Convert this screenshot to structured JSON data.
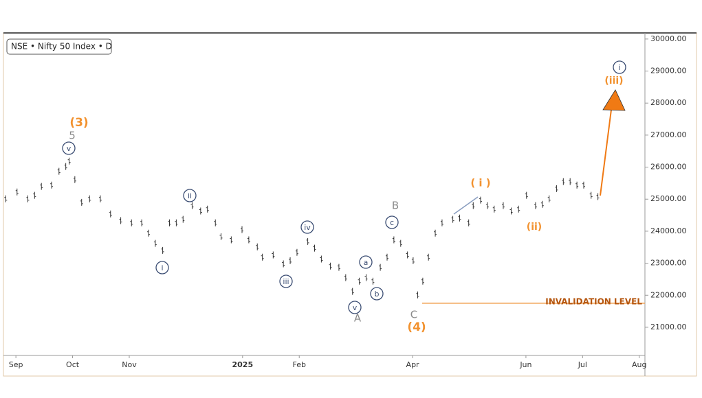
{
  "chart_data": {
    "type": "ohlc",
    "title": "NSE • Nifty 50 Index • D",
    "x": [
      -0.18,
      0.02,
      0.21,
      0.33,
      0.45,
      0.63,
      0.76,
      0.88,
      0.94,
      1.04,
      1.16,
      1.3,
      1.49,
      1.67,
      1.85,
      2.04,
      2.22,
      2.34,
      2.46,
      2.59,
      2.71,
      2.83,
      2.95,
      3.11,
      3.26,
      3.38,
      3.52,
      3.62,
      3.8,
      3.99,
      4.11,
      4.26,
      4.35,
      4.54,
      4.72,
      4.84,
      4.96,
      5.15,
      5.27,
      5.39,
      5.55,
      5.7,
      5.82,
      5.94,
      6.06,
      6.18,
      6.3,
      6.43,
      6.55,
      6.67,
      6.79,
      6.91,
      7.01,
      7.09,
      7.18,
      7.28,
      7.4,
      7.52,
      7.71,
      7.83,
      7.99,
      8.07,
      8.2,
      8.32,
      8.44,
      8.6,
      8.74,
      8.87,
      9.01,
      9.17,
      9.29,
      9.41,
      9.54,
      9.66,
      9.78,
      9.9,
      10.02,
      10.15,
      10.27
    ],
    "values": [
      25010,
      25225,
      25010,
      25120,
      25400,
      25440,
      25870,
      26020,
      26190,
      25610,
      24900,
      25010,
      25010,
      24540,
      24330,
      24260,
      24260,
      23940,
      23620,
      23400,
      24260,
      24260,
      24370,
      24800,
      24630,
      24690,
      24260,
      23830,
      23730,
      24050,
      23730,
      23510,
      23190,
      23260,
      22980,
      23080,
      23340,
      23680,
      23470,
      23130,
      22910,
      22870,
      22550,
      22120,
      22440,
      22550,
      22440,
      22870,
      23190,
      23730,
      23620,
      23260,
      23080,
      22010,
      22440,
      23190,
      23940,
      24260,
      24370,
      24410,
      24260,
      24800,
      24970,
      24800,
      24690,
      24800,
      24630,
      24690,
      25120,
      24800,
      24840,
      25010,
      25330,
      25550,
      25550,
      25440,
      25440,
      25120,
      25080
    ],
    "color": "#333333",
    "xlim": [
      -0.22,
      11.1
    ],
    "xticks": [
      {
        "value": 0,
        "label": "Sep"
      },
      {
        "value": 1,
        "label": "Oct"
      },
      {
        "value": 2,
        "label": "Nov"
      },
      {
        "value": 4,
        "label": "2025"
      },
      {
        "value": 5,
        "label": "Feb"
      },
      {
        "value": 7,
        "label": "Apr"
      },
      {
        "value": 9,
        "label": "Jun"
      },
      {
        "value": 10,
        "label": "Jul"
      },
      {
        "value": 11,
        "label": "Aug"
      }
    ],
    "ylim": [
      20120,
      30190
    ],
    "yticks": [
      {
        "value": 21000,
        "label": "21000.00"
      },
      {
        "value": 22000,
        "label": "22000.00"
      },
      {
        "value": 23000,
        "label": "23000.00"
      },
      {
        "value": 24000,
        "label": "24000.00"
      },
      {
        "value": 25000,
        "label": "25000.00"
      },
      {
        "value": 26000,
        "label": "26000.00"
      },
      {
        "value": 27000,
        "label": "27000.00"
      },
      {
        "value": 28000,
        "label": "28000.00"
      },
      {
        "value": 29000,
        "label": "29000.00"
      },
      {
        "value": 30000,
        "label": "30000.00"
      }
    ],
    "invalidation_level": 21750,
    "invalidation_label": "INVALIDATION LEVEL",
    "annotations": [
      "(3)",
      "5",
      "v",
      "ii",
      "i",
      "iii",
      "iv",
      "v",
      "A",
      "a",
      "b",
      "c",
      "B",
      "C",
      "(4)",
      "( i )",
      "(ii)",
      "(iii)",
      "i"
    ]
  }
}
